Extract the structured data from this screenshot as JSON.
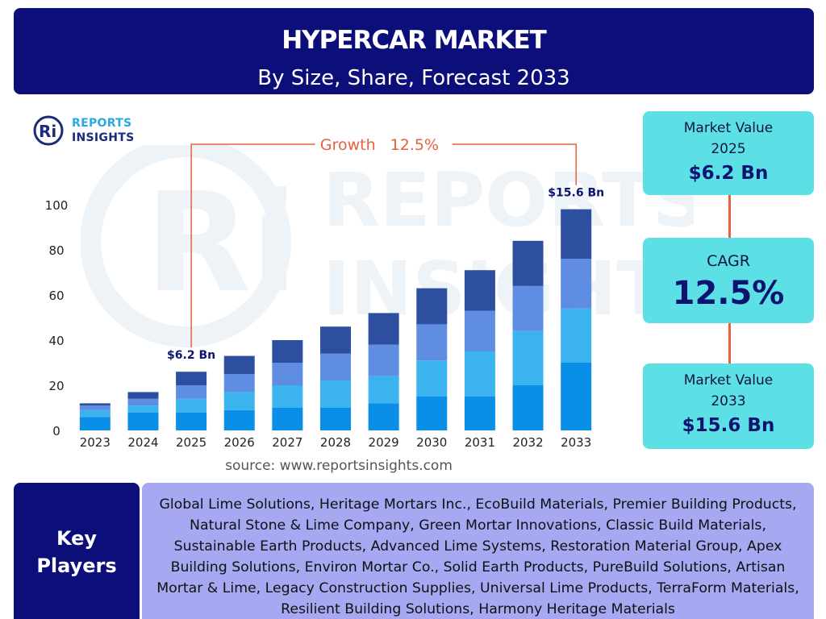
{
  "header": {
    "title": "HYPERCAR MARKET",
    "subtitle": "By Size, Share, Forecast 2033"
  },
  "logo": {
    "line1": "REPORTS",
    "line2": "INSIGHTS",
    "mark": "Ri"
  },
  "watermark": {
    "line1": "REPORTS",
    "line2": "INSIGHTS"
  },
  "colors": {
    "header_bg": "#0c0f7a",
    "card_bg": "#5ce0e6",
    "accent_orange": "#e8603c",
    "key_players_bg": "#a6a8f2",
    "series": [
      "#0a8fe8",
      "#3bb3ee",
      "#5e8de2",
      "#2e4f9f"
    ]
  },
  "chart_data": {
    "type": "bar",
    "stacked": true,
    "categories": [
      "2023",
      "2024",
      "2025",
      "2026",
      "2027",
      "2028",
      "2029",
      "2030",
      "2031",
      "2032",
      "2033"
    ],
    "series": [
      {
        "values": [
          6,
          8,
          8,
          9,
          10,
          10,
          12,
          15,
          15,
          20,
          30
        ]
      },
      {
        "values": [
          3,
          3,
          6,
          8,
          10,
          12,
          12,
          16,
          20,
          24,
          24
        ]
      },
      {
        "values": [
          2,
          3,
          6,
          8,
          10,
          12,
          14,
          16,
          18,
          20,
          22
        ]
      },
      {
        "values": [
          1,
          3,
          6,
          8,
          10,
          12,
          14,
          16,
          18,
          20,
          22
        ]
      }
    ],
    "ylim": [
      0,
      100
    ],
    "yticks": [
      0,
      20,
      40,
      60,
      80,
      100
    ],
    "grid": false,
    "annotations": [
      {
        "category": "2025",
        "label": "$6.2 Bn"
      },
      {
        "category": "2033",
        "label": "$15.6 Bn"
      }
    ],
    "growth_label": "Growth",
    "growth_value": "12.5%"
  },
  "source": "source: www.reportsinsights.com",
  "cards": {
    "value_2025": {
      "label_line1": "Market Value",
      "label_line2": "2025",
      "value": "$6.2 Bn"
    },
    "cagr": {
      "label": "CAGR",
      "value": "12.5%"
    },
    "value_2033": {
      "label_line1": "Market Value",
      "label_line2": "2033",
      "value": "$15.6 Bn"
    }
  },
  "key_players": {
    "heading_line1": "Key",
    "heading_line2": "Players",
    "text": "Global Lime Solutions, Heritage Mortars Inc., EcoBuild Materials, Premier Building Products, Natural Stone & Lime Company, Green Mortar Innovations, Classic Build Materials, Sustainable Earth Products, Advanced Lime Systems, Restoration Material Group, Apex Building Solutions, Environ Mortar Co., Solid Earth Products, PureBuild Solutions, Artisan Mortar & Lime, Legacy Construction Supplies, Universal Lime Products, TerraForm Materials, Resilient Building Solutions, Harmony Heritage Materials"
  }
}
